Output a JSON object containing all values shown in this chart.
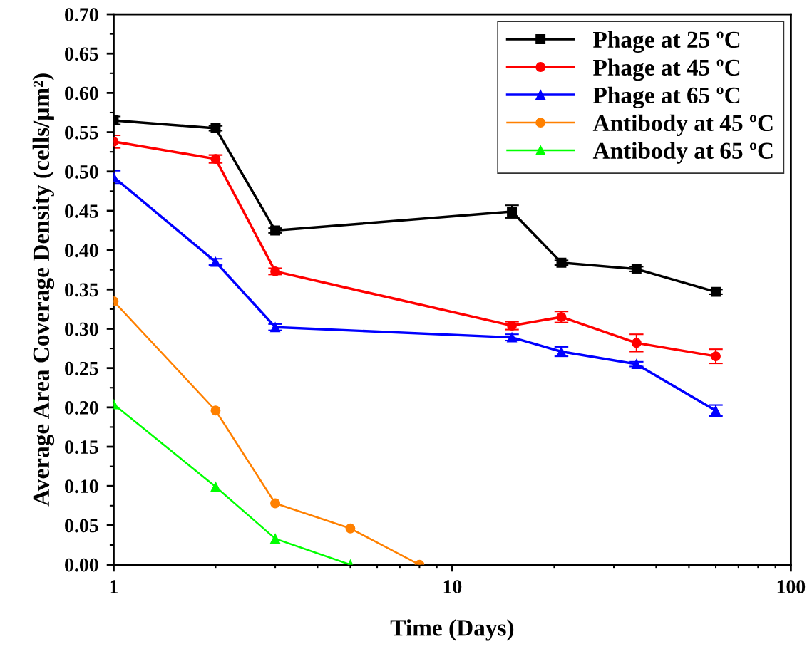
{
  "chart_data": {
    "type": "line",
    "xlabel": "Time (Days)",
    "ylabel": "Average Area Coverage Density (cells/μm²)",
    "log": "x",
    "xlim": [
      1,
      100
    ],
    "xticks": [
      1,
      10,
      100
    ],
    "ylim": [
      0,
      0.7
    ],
    "yticks": [
      {
        "value": 0,
        "label": "0.00"
      },
      {
        "value": 0.05,
        "label": "0.05"
      },
      {
        "value": 0.1,
        "label": "0.10"
      },
      {
        "value": 0.15,
        "label": "0.15"
      },
      {
        "value": 0.2,
        "label": "0.20"
      },
      {
        "value": 0.25,
        "label": "0.25"
      },
      {
        "value": 0.3,
        "label": "0.30"
      },
      {
        "value": 0.35,
        "label": "0.35"
      },
      {
        "value": 0.4,
        "label": "0.40"
      },
      {
        "value": 0.45,
        "label": "0.45"
      },
      {
        "value": 0.5,
        "label": "0.50"
      },
      {
        "value": 0.55,
        "label": "0.55"
      },
      {
        "value": 0.6,
        "label": "0.60"
      },
      {
        "value": 0.65,
        "label": "0.65"
      },
      {
        "value": 0.7,
        "label": "0.70"
      }
    ],
    "grid": false,
    "legend": "top right",
    "line_style": "solid",
    "series": [
      {
        "name": "Phage at 25 ºC",
        "color": "#000000",
        "marker": "square",
        "x": [
          1,
          2,
          3,
          15,
          21,
          35,
          60
        ],
        "values": [
          0.565,
          0.555,
          0.425,
          0.449,
          0.384,
          0.376,
          0.347
        ],
        "errors": [
          0.005,
          0.003,
          0.003,
          0.008,
          0.003,
          0.003,
          0.003
        ]
      },
      {
        "name": "Phage at 45 ºC",
        "color": "#ff0000",
        "marker": "circle",
        "x": [
          1,
          2,
          3,
          15,
          21,
          35,
          60
        ],
        "values": [
          0.538,
          0.516,
          0.373,
          0.304,
          0.315,
          0.282,
          0.265
        ],
        "errors": [
          0.008,
          0.005,
          0.004,
          0.005,
          0.007,
          0.011,
          0.009
        ]
      },
      {
        "name": "Phage at 65 ºC",
        "color": "#0000ff",
        "marker": "triangle",
        "x": [
          1,
          2,
          3,
          15,
          21,
          35,
          60
        ],
        "values": [
          0.493,
          0.385,
          0.302,
          0.289,
          0.271,
          0.255,
          0.196
        ],
        "errors": [
          0.008,
          0.004,
          0.004,
          0.004,
          0.006,
          0.003,
          0.007
        ]
      },
      {
        "name": "Antibody at 45 ºC",
        "color": "#ff8000",
        "marker": "circle",
        "x": [
          1,
          2,
          3,
          5,
          8
        ],
        "values": [
          0.335,
          0.196,
          0.078,
          0.046,
          0.0
        ]
      },
      {
        "name": "Antibody at 65 ºC",
        "color": "#00ff00",
        "marker": "triangle",
        "x": [
          1,
          2,
          3,
          5
        ],
        "values": [
          0.204,
          0.099,
          0.033,
          0.0
        ]
      }
    ]
  }
}
